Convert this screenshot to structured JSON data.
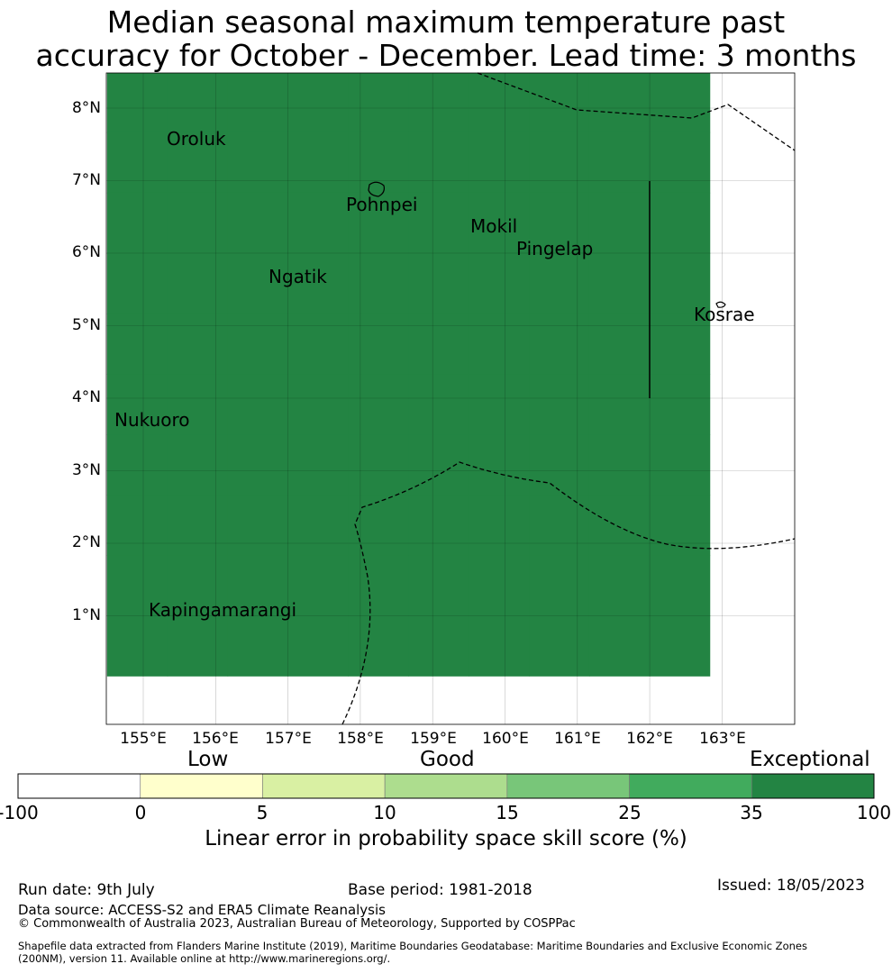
{
  "title": {
    "line1": "Median seasonal maximum temperature past",
    "line2": "accuracy for October - December. Lead time: 3 months"
  },
  "map": {
    "lat_labels": [
      "8°N",
      "7°N",
      "6°N",
      "5°N",
      "4°N",
      "3°N",
      "2°N",
      "1°N"
    ],
    "lon_labels": [
      "155°E",
      "156°E",
      "157°E",
      "158°E",
      "159°E",
      "160°E",
      "161°E",
      "162°E",
      "163°E"
    ],
    "places": [
      "Oroluk",
      "Pohnpei",
      "Mokil",
      "Pingelap",
      "Ngatik",
      "Kosrae",
      "Nukuoro",
      "Kapingamarangi"
    ],
    "grid_lon_start": 154.5,
    "grid_lat_top": 8.5,
    "cell_size_deg": 0.833,
    "skill_categories": [
      "6666666666",
      "6666666666",
      "6666666666",
      "6666666666",
      "6666666666",
      "6666666666",
      "6666666666",
      "6666666666",
      "6666666666",
      "6666666666"
    ]
  },
  "colorbar": {
    "bounds": [
      "-100",
      "0",
      "5",
      "10",
      "15",
      "25",
      "35",
      "100"
    ],
    "colors": [
      "#ffffff",
      "#ffffcc",
      "#d9f0a3",
      "#addd8e",
      "#78c679",
      "#41ab5d",
      "#238443"
    ],
    "categories": [
      "Low",
      "Good",
      "Exceptional"
    ],
    "title": "Linear error in probability space skill score (%)"
  },
  "footer": {
    "run_date": "Run date: 9th July",
    "base_period": "Base period: 1981-2018",
    "issued": "Issued: 18/05/2023",
    "data_source": "Data source: ACCESS-S2 and ERA5 Climate Reanalysis",
    "copyright": "© Commonwealth of Australia 2023, Australian Bureau of Meteorology, Supported by COSPPac",
    "shapefile_1": "Shapefile data extracted from Flanders Marine Institute (2019), Maritime Boundaries Geodatabase: Maritime Boundaries and Exclusive Economic Zones",
    "shapefile_2": "(200NM), version 11. Available online at http://www.marineregions.org/."
  }
}
